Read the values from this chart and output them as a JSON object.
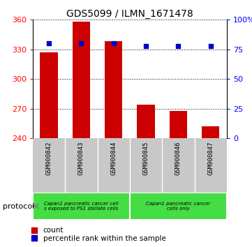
{
  "title": "GDS5099 / ILMN_1671478",
  "samples": [
    "GSM900842",
    "GSM900843",
    "GSM900844",
    "GSM900845",
    "GSM900846",
    "GSM900847"
  ],
  "counts": [
    327,
    358,
    338,
    274,
    268,
    252
  ],
  "percentiles": [
    80,
    80,
    80,
    78,
    78,
    78
  ],
  "ylim_left": [
    240,
    360
  ],
  "ylim_right": [
    0,
    100
  ],
  "yticks_left": [
    240,
    270,
    300,
    330,
    360
  ],
  "yticks_right": [
    0,
    25,
    50,
    75,
    100
  ],
  "ytick_labels_right": [
    "0",
    "25",
    "50",
    "75",
    "100%"
  ],
  "bar_color": "#cc0000",
  "dot_color": "#0000cc",
  "bar_width": 0.55,
  "baseline": 240,
  "protocol_groups": [
    {
      "label": "Capan1 pancreatic cancer cell\ns exposed to PS1 stellate cells",
      "samples": [
        0,
        1,
        2
      ],
      "color": "#44dd44"
    },
    {
      "label": "Capan1 pancreatic cancer\ncells only",
      "samples": [
        3,
        4,
        5
      ],
      "color": "#44dd44"
    }
  ],
  "legend_count_label": "count",
  "legend_percentile_label": "percentile rank within the sample",
  "protocol_label": "protocol",
  "plot_bg": "#ffffff",
  "sample_area_bg": "#c8c8c8",
  "title_fontsize": 10,
  "tick_fontsize": 8,
  "label_fontsize": 8
}
